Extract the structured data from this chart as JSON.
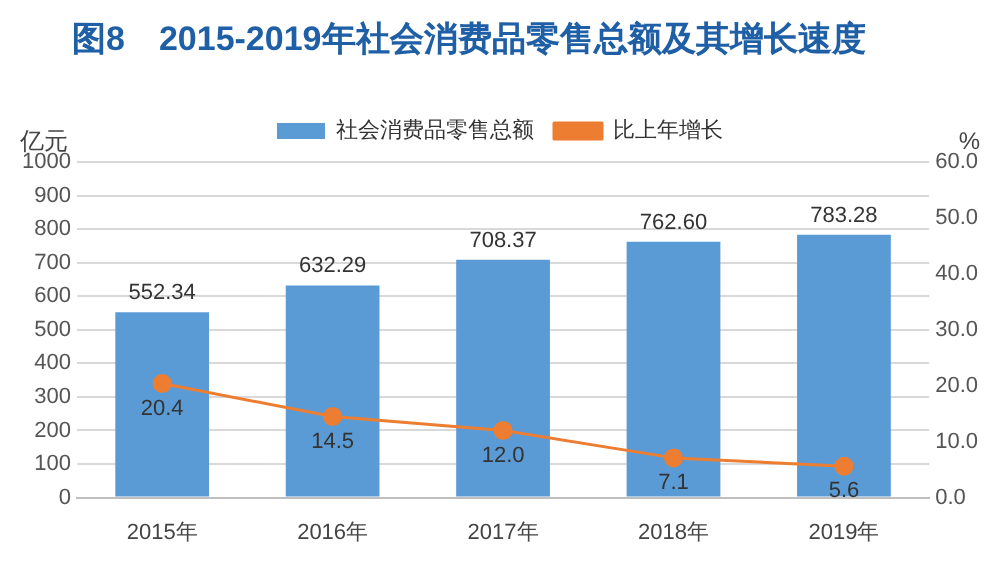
{
  "chart_data": {
    "type": "bar",
    "title": "图8　2015-2019年社会消费品零售总额及其增长速度",
    "ylabel": "亿元",
    "y2label": "%",
    "categories": [
      "2015年",
      "2016年",
      "2017年",
      "2018年",
      "2019年"
    ],
    "series": [
      {
        "name": "社会消费品零售总额",
        "color": "#5b9bd5",
        "values": [
          552.34,
          632.29,
          708.37,
          762.6,
          783.28
        ],
        "value_labels": [
          "552.34",
          "632.29",
          "708.37",
          "762.60",
          "783.28"
        ]
      },
      {
        "name": "比上年增长",
        "type": "line",
        "axis": "y2",
        "color": "#ed7d31",
        "marker": "circle",
        "values": [
          20.4,
          14.5,
          12.0,
          7.1,
          5.6
        ],
        "value_labels": [
          "20.4",
          "14.5",
          "12.0",
          "7.1",
          "5.6"
        ]
      }
    ],
    "ylim": [
      0,
      1000
    ],
    "yticks": [
      0,
      100,
      200,
      300,
      400,
      500,
      600,
      700,
      800,
      900,
      1000
    ],
    "y2lim": [
      0,
      60
    ],
    "y2ticks": [
      {
        "value": 0,
        "label": "0.0"
      },
      {
        "value": 10,
        "label": "10.0"
      },
      {
        "value": 20,
        "label": "20.0"
      },
      {
        "value": 30,
        "label": "30.0"
      },
      {
        "value": 40,
        "label": "40.0"
      },
      {
        "value": 50,
        "label": "50.0"
      },
      {
        "value": 60,
        "label": "60.0"
      }
    ],
    "grid": "y",
    "legend": "top"
  }
}
